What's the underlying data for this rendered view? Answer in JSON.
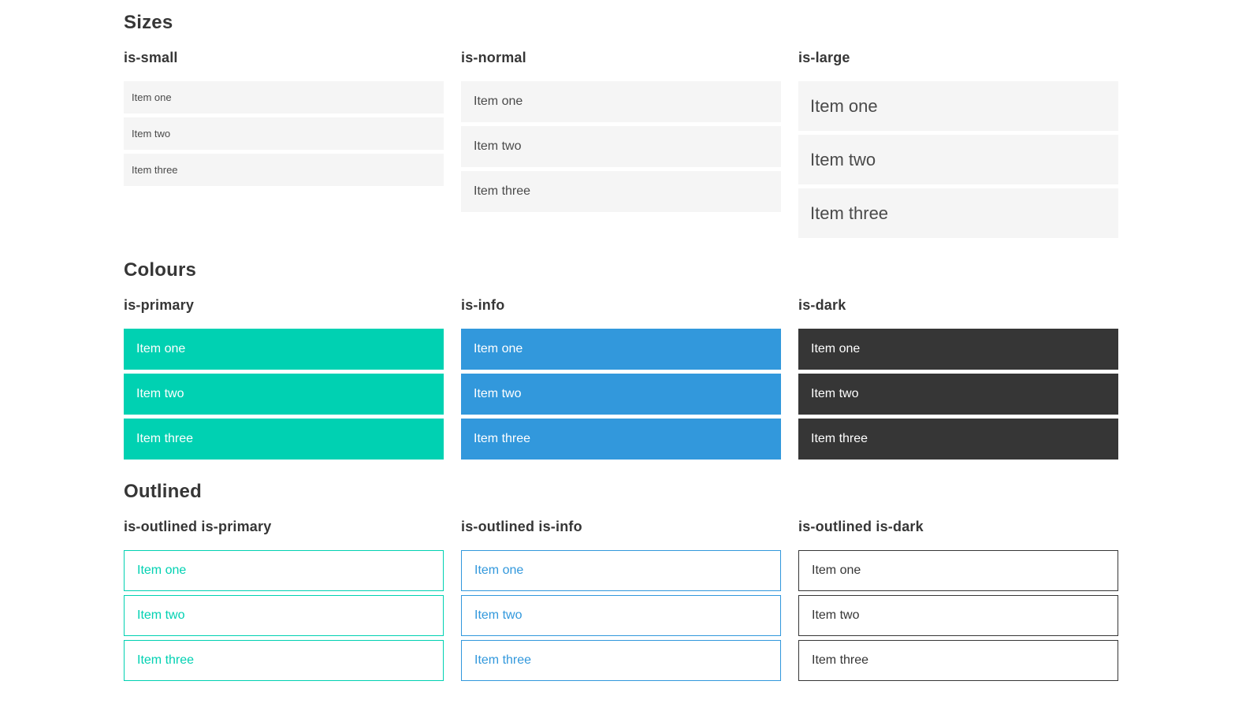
{
  "page": {
    "colors": {
      "primary": "#00d1b2",
      "info": "#3298dc",
      "dark": "#363636",
      "item_bg": "#f5f5f5",
      "item_text": "#4a4a4a",
      "heading_text": "#363636",
      "white": "#ffffff"
    },
    "sections": [
      {
        "title": "Sizes",
        "groups": [
          {
            "label": "is-small",
            "items": [
              "Item one",
              "Item two",
              "Item three"
            ]
          },
          {
            "label": "is-normal",
            "items": [
              "Item one",
              "Item two",
              "Item three"
            ]
          },
          {
            "label": "is-large",
            "items": [
              "Item one",
              "Item two",
              "Item three"
            ]
          }
        ]
      },
      {
        "title": "Colours",
        "groups": [
          {
            "label": "is-primary",
            "items": [
              "Item one",
              "Item two",
              "Item three"
            ]
          },
          {
            "label": "is-info",
            "items": [
              "Item one",
              "Item two",
              "Item three"
            ]
          },
          {
            "label": "is-dark",
            "items": [
              "Item one",
              "Item two",
              "Item three"
            ]
          }
        ]
      },
      {
        "title": "Outlined",
        "groups": [
          {
            "label": "is-outlined is-primary",
            "items": [
              "Item one",
              "Item two",
              "Item three"
            ]
          },
          {
            "label": "is-outlined is-info",
            "items": [
              "Item one",
              "Item two",
              "Item three"
            ]
          },
          {
            "label": "is-outlined is-dark",
            "items": [
              "Item one",
              "Item two",
              "Item three"
            ]
          }
        ]
      }
    ]
  }
}
